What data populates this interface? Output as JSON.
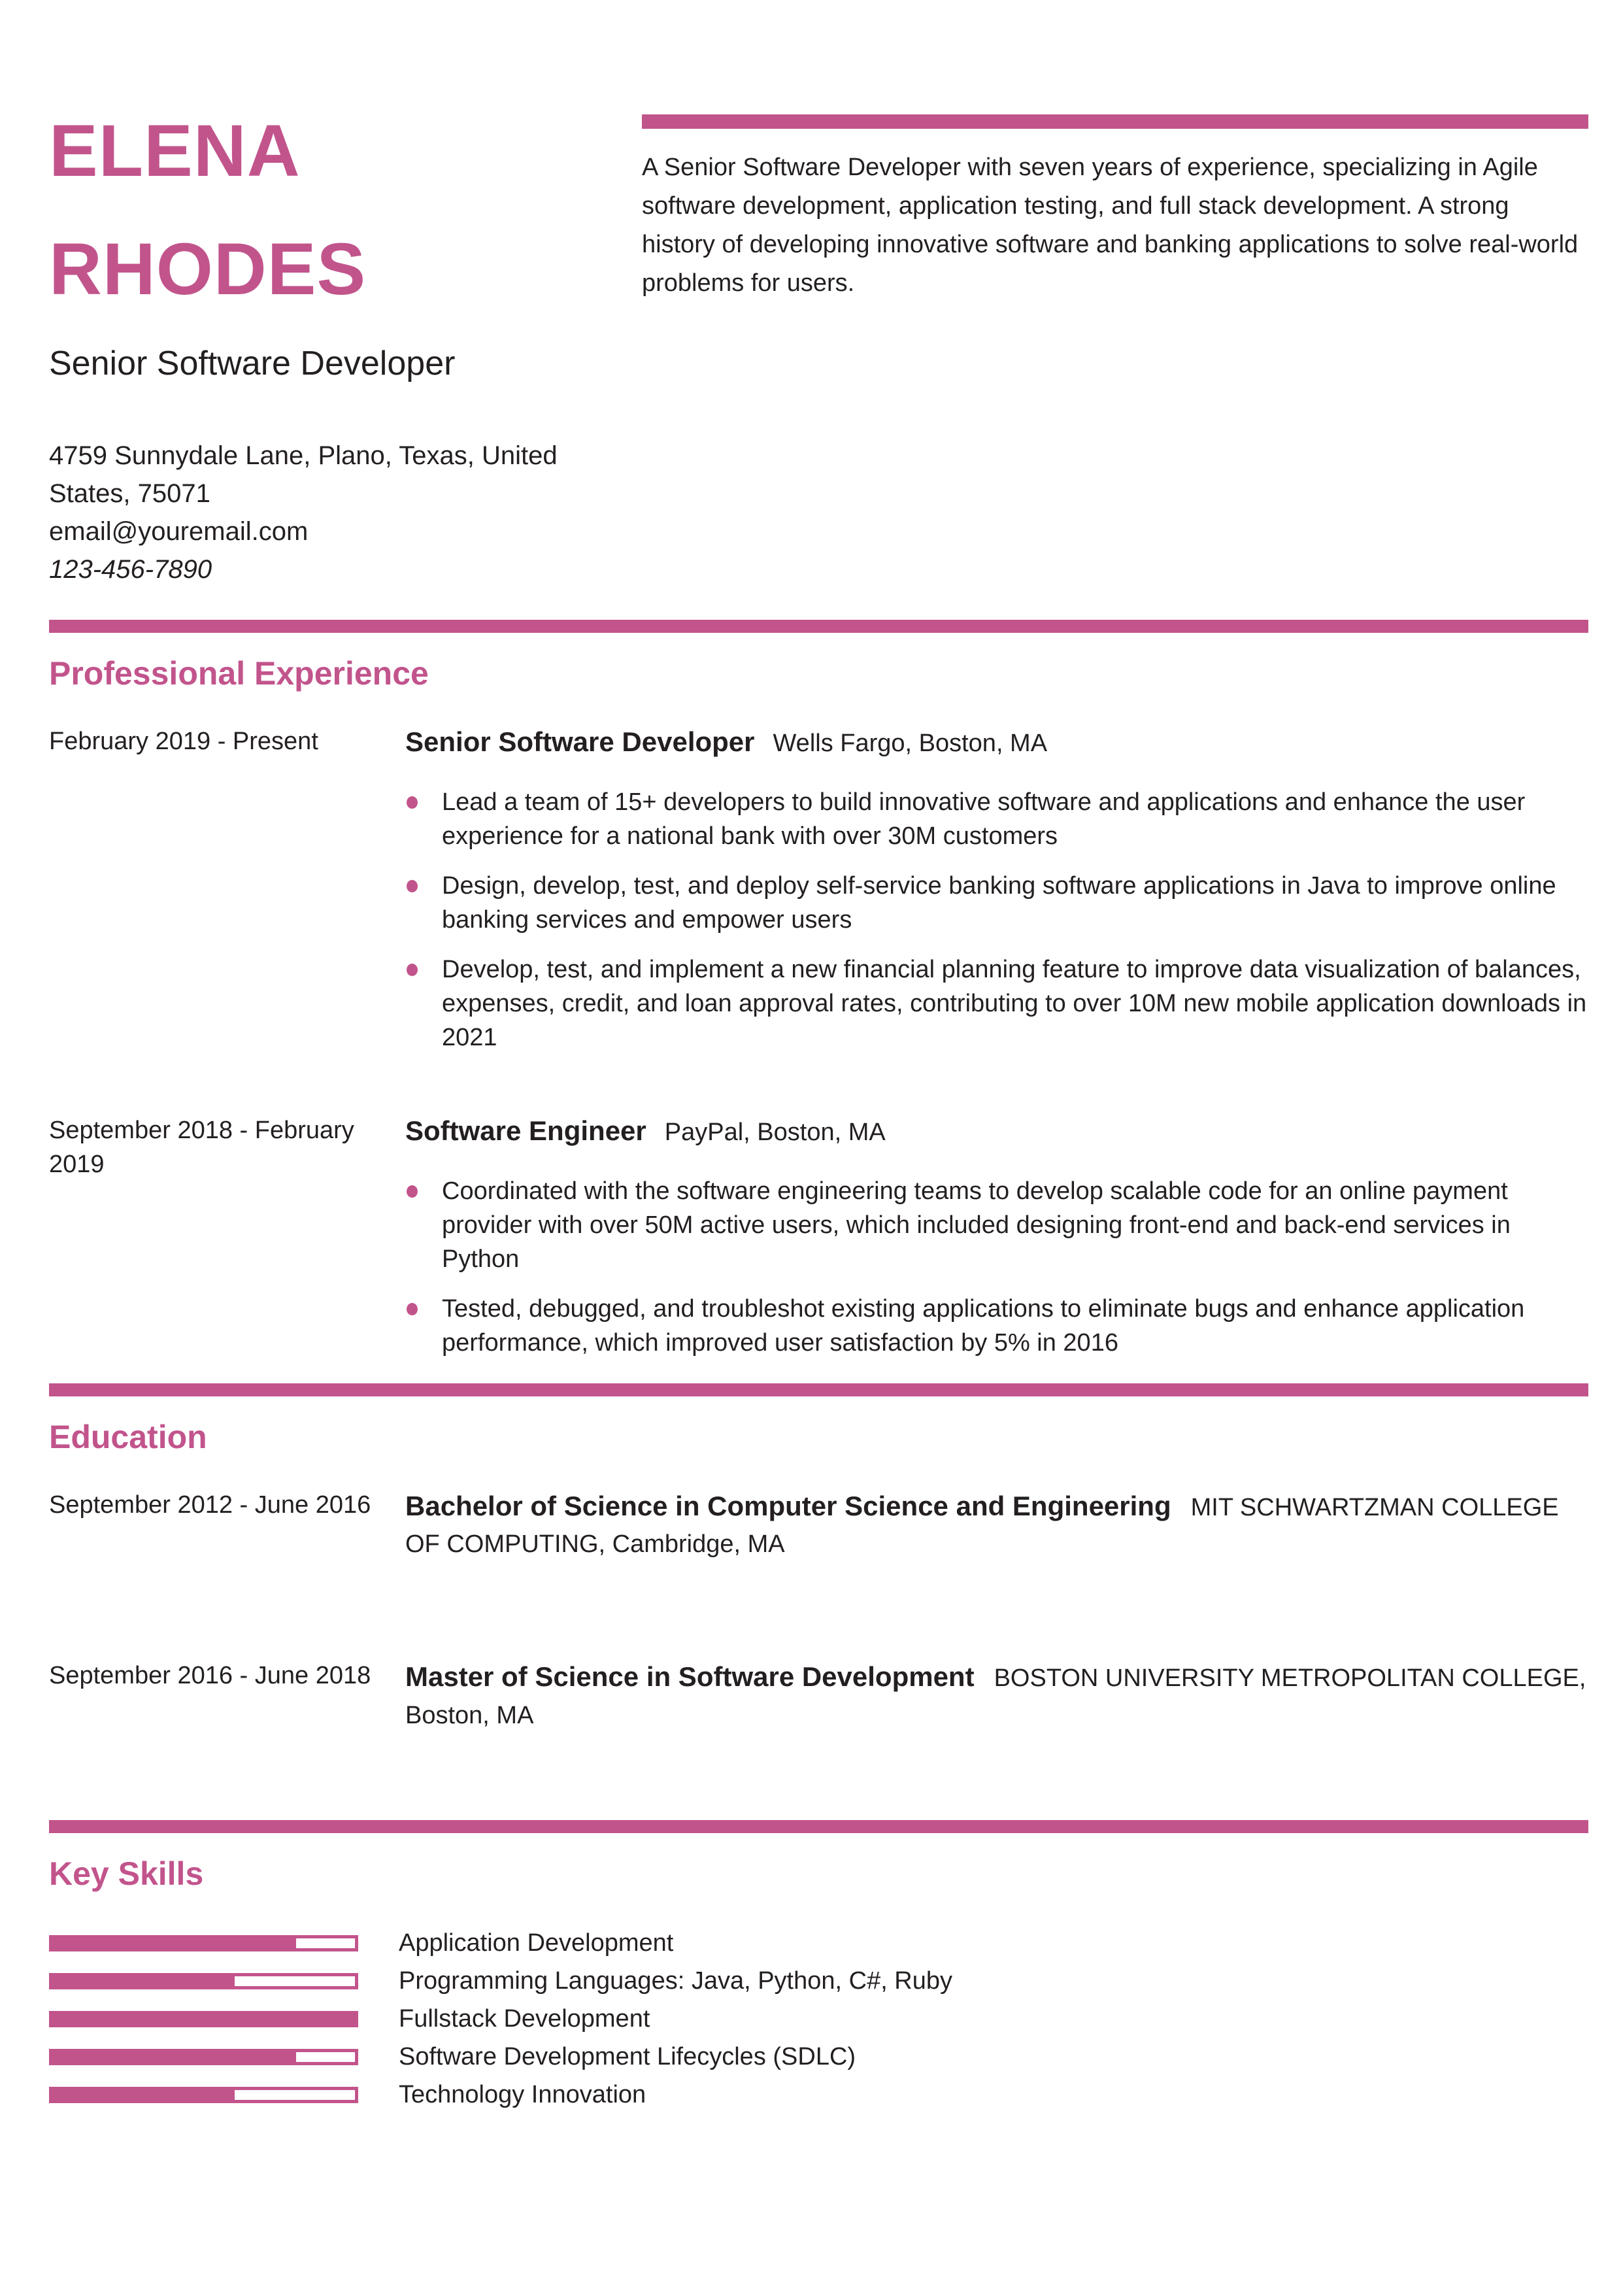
{
  "accent_color": "#c2548c",
  "header": {
    "name_line1": "ELENA",
    "name_line2": "RHODES",
    "title": "Senior Software Developer",
    "address_lines": [
      "4759 Sunnydale Lane, Plano, Texas, United",
      "States, 75071"
    ],
    "email": "email@youremail.com",
    "phone": "123-456-7890",
    "summary": "A Senior Software Developer with seven years of experience, specializing in Agile software development, application testing, and full stack development. A strong history of developing innovative software and banking applications to solve real-world problems for users."
  },
  "experience": {
    "heading": "Professional Experience",
    "jobs": [
      {
        "dates": "February 2019 - Present",
        "title": "Senior Software Developer",
        "company": "Wells Fargo, Boston, MA",
        "bullets": [
          "Lead a team of 15+ developers to build innovative software and applications and enhance the user experience for a national bank with over 30M customers",
          "Design, develop, test, and deploy self-service banking software applications in Java to improve online banking services and empower users",
          "Develop, test, and implement a new financial planning feature to improve data visualization of balances, expenses, credit, and loan approval rates, contributing to over 10M new mobile application downloads in 2021"
        ]
      },
      {
        "dates": "September 2018 - February 2019",
        "title": "Software Engineer",
        "company": "PayPal, Boston, MA",
        "bullets": [
          "Coordinated with the software engineering teams to develop scalable code for an online payment provider with over 50M active users, which included designing front-end and back-end services in Python",
          "Tested, debugged, and troubleshot existing applications to eliminate bugs and enhance application performance, which improved user satisfaction by 5% in 2016"
        ]
      }
    ]
  },
  "education": {
    "heading": "Education",
    "entries": [
      {
        "dates": "September 2012 - June 2016",
        "degree": "Bachelor of Science in Computer Science and Engineering",
        "school": "MIT SCHWARTZMAN COLLEGE OF COMPUTING, Cambridge, MA"
      },
      {
        "dates": "September 2016 - June 2018",
        "degree": "Master of Science in Software Development",
        "school": "BOSTON UNIVERSITY METROPOLITAN COLLEGE, Boston, MA"
      }
    ]
  },
  "skills": {
    "heading": "Key Skills",
    "items": [
      {
        "label": "Application Development",
        "level_percent": 80,
        "rest_left": "80%"
      },
      {
        "label": "Programming Languages: Java, Python, C#, Ruby",
        "level_percent": 60,
        "rest_left": "60%"
      },
      {
        "label": "Fullstack Development",
        "level_percent": 100,
        "rest_left": "100%"
      },
      {
        "label": "Software Development Lifecycles (SDLC)",
        "level_percent": 80,
        "rest_left": "80%"
      },
      {
        "label": "Technology Innovation",
        "level_percent": 60,
        "rest_left": "60%"
      }
    ]
  }
}
